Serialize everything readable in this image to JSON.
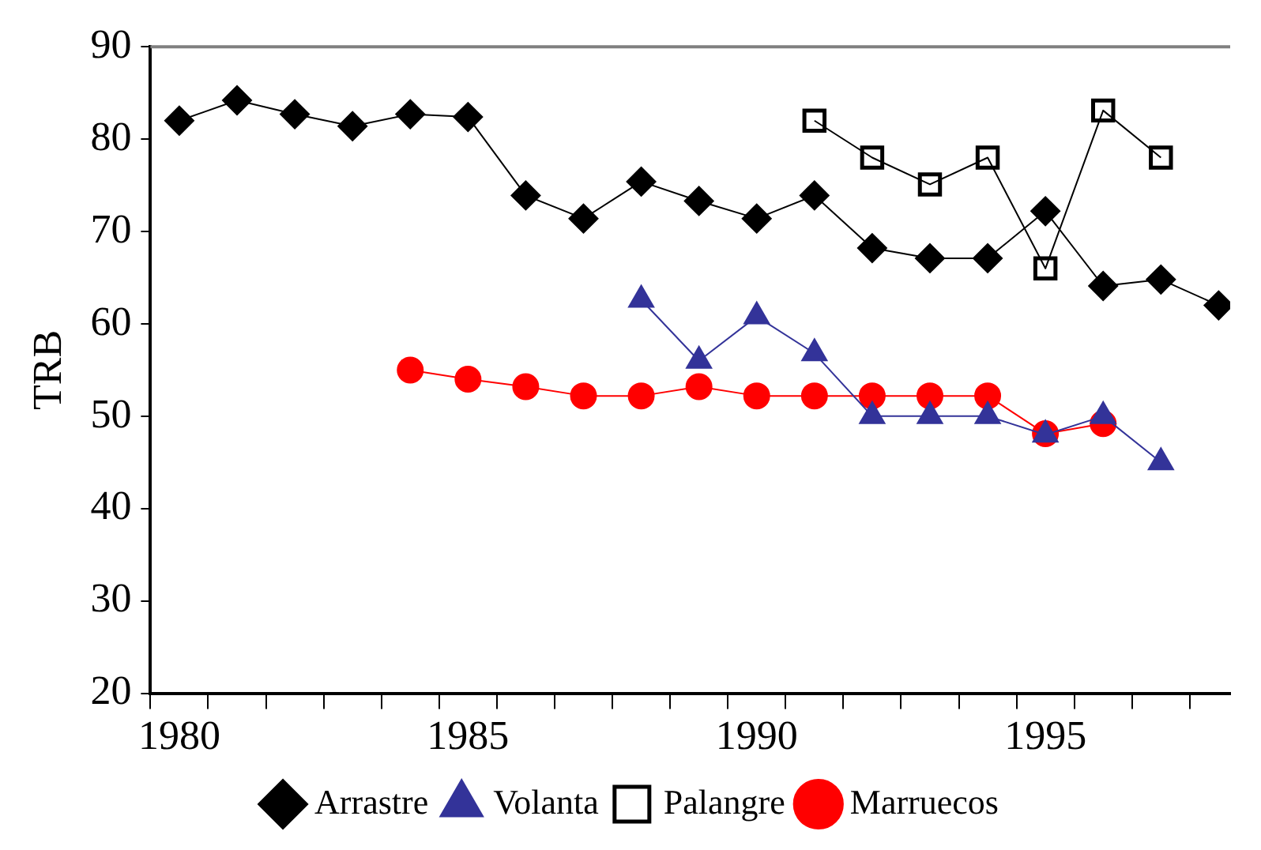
{
  "chart_data": {
    "type": "line",
    "ylabel": "TRB",
    "xlim": [
      1979.5,
      1998.2
    ],
    "ylim": [
      20,
      90
    ],
    "yticks": [
      20,
      30,
      40,
      50,
      60,
      70,
      80,
      90
    ],
    "xticks": [
      {
        "value": 1979.5,
        "label": null
      },
      {
        "value": 1980,
        "label": "1980"
      },
      {
        "value": 1980.5,
        "label": null
      },
      {
        "value": 1981.5,
        "label": null
      },
      {
        "value": 1982.5,
        "label": null
      },
      {
        "value": 1983.5,
        "label": null
      },
      {
        "value": 1984.5,
        "label": null
      },
      {
        "value": 1985,
        "label": "1985"
      },
      {
        "value": 1985.5,
        "label": null
      },
      {
        "value": 1986.5,
        "label": null
      },
      {
        "value": 1987.5,
        "label": null
      },
      {
        "value": 1988.5,
        "label": null
      },
      {
        "value": 1989.5,
        "label": null
      },
      {
        "value": 1990,
        "label": "1990"
      },
      {
        "value": 1990.5,
        "label": null
      },
      {
        "value": 1991.5,
        "label": null
      },
      {
        "value": 1992.5,
        "label": null
      },
      {
        "value": 1993.5,
        "label": null
      },
      {
        "value": 1994.5,
        "label": null
      },
      {
        "value": 1995,
        "label": "1995"
      },
      {
        "value": 1995.5,
        "label": null
      },
      {
        "value": 1996.5,
        "label": null
      },
      {
        "value": 1997.5,
        "label": null
      }
    ],
    "grid": false,
    "legend": "bottom",
    "line_style": "solid",
    "series": [
      {
        "name": "Arrastre",
        "color": "#000000",
        "marker": "diamond",
        "x": [
          1980,
          1981,
          1982,
          1983,
          1984,
          1985,
          1986,
          1987,
          1988,
          1989,
          1990,
          1991,
          1992,
          1993,
          1994,
          1995,
          1996,
          1997,
          1998
        ],
        "values": [
          82,
          84.2,
          82.7,
          81.4,
          82.7,
          82.4,
          73.9,
          71.4,
          75.4,
          73.3,
          71.4,
          73.9,
          68.2,
          67.1,
          67.1,
          72.2,
          64.1,
          64.8,
          62
        ]
      },
      {
        "name": "Volanta",
        "color": "#333399",
        "marker": "triangle",
        "x": [
          1988,
          1989,
          1990,
          1991,
          1992,
          1993,
          1994,
          1995,
          1996,
          1997
        ],
        "values": [
          62.6,
          56,
          60.8,
          56.8,
          50,
          50,
          50,
          48,
          50,
          45
        ]
      },
      {
        "name": "Palangre",
        "color": "#000000",
        "marker": "square",
        "x": [
          1991,
          1992,
          1993,
          1994,
          1995,
          1996,
          1997
        ],
        "values": [
          82,
          78,
          75.1,
          78,
          66,
          83.1,
          78
        ]
      },
      {
        "name": "Marruecos",
        "color": "#ff0000",
        "marker": "circle",
        "x": [
          1984,
          1985,
          1986,
          1987,
          1988,
          1989,
          1990,
          1991,
          1992,
          1993,
          1994,
          1995,
          1996
        ],
        "values": [
          55,
          54,
          53.2,
          52.2,
          52.2,
          53.2,
          52.2,
          52.2,
          52.2,
          52.2,
          52.2,
          48.1,
          49.2
        ]
      }
    ]
  }
}
